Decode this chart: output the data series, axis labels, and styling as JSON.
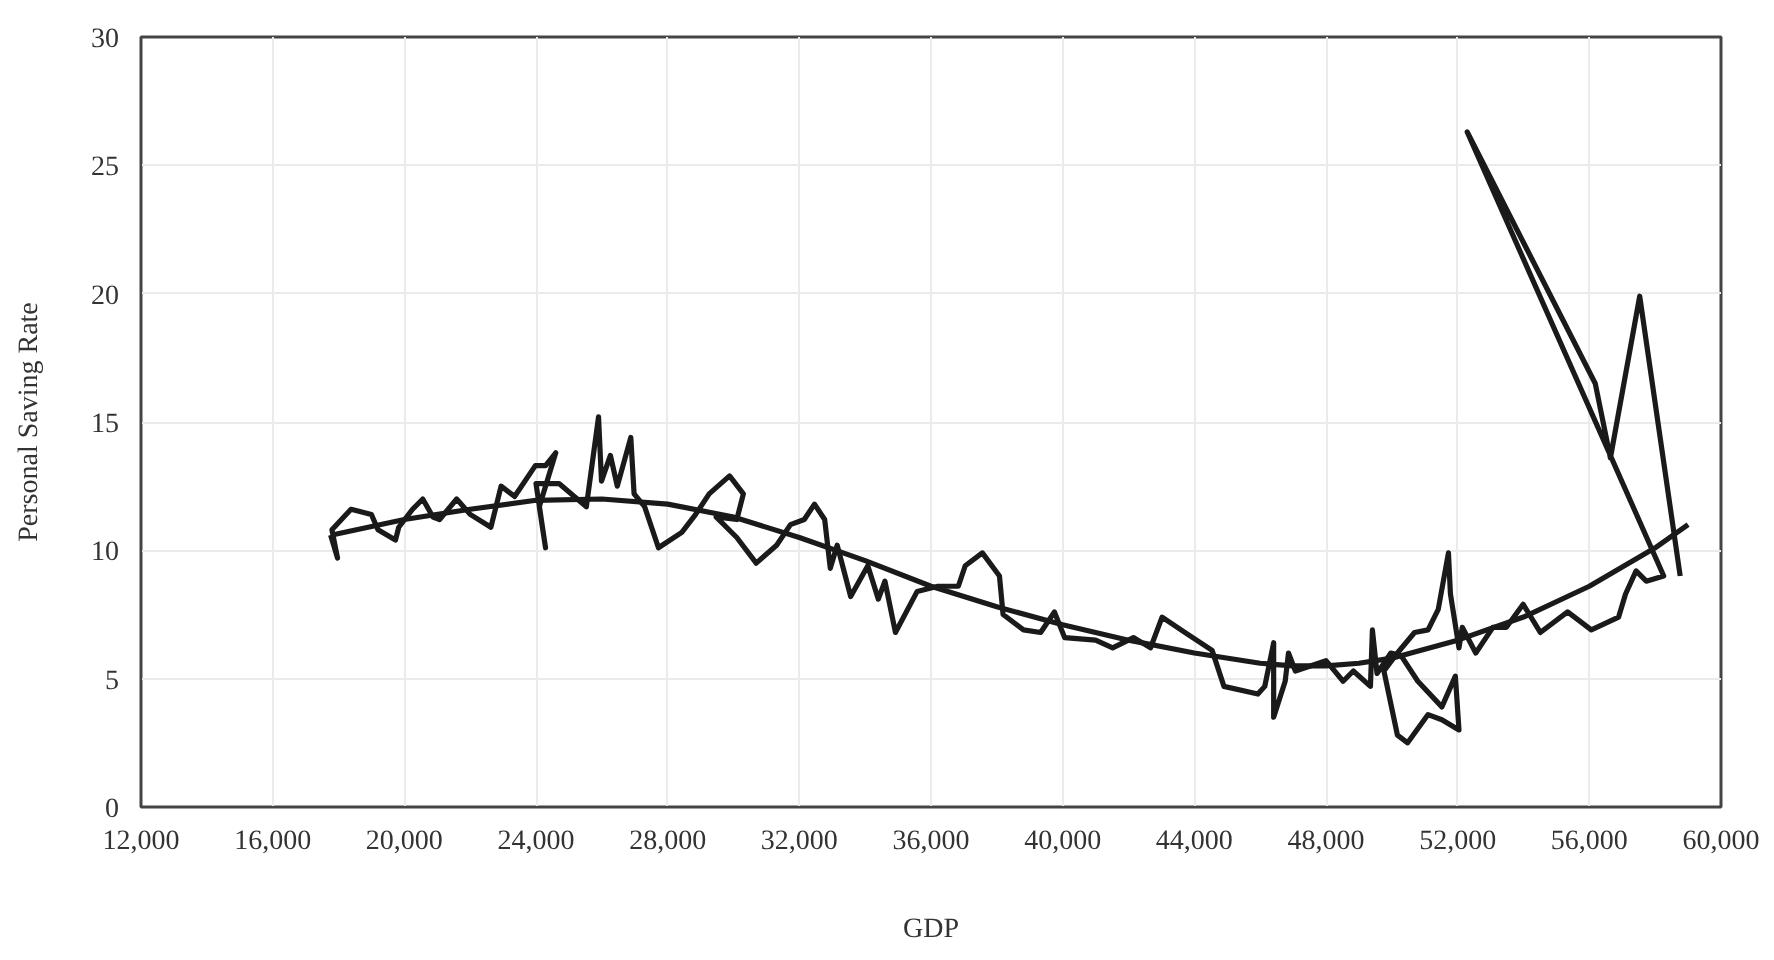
{
  "chart_data": {
    "type": "line",
    "xlabel": "GDP",
    "ylabel": "Personal Saving Rate",
    "xlim": [
      12000,
      60000
    ],
    "ylim": [
      0,
      30
    ],
    "xticks": [
      {
        "value": 12000,
        "label": "12,000"
      },
      {
        "value": 16000,
        "label": "16,000"
      },
      {
        "value": 20000,
        "label": "20,000"
      },
      {
        "value": 24000,
        "label": "24,000"
      },
      {
        "value": 28000,
        "label": "28,000"
      },
      {
        "value": 32000,
        "label": "32,000"
      },
      {
        "value": 36000,
        "label": "36,000"
      },
      {
        "value": 40000,
        "label": "40,000"
      },
      {
        "value": 44000,
        "label": "44,000"
      },
      {
        "value": 48000,
        "label": "48,000"
      },
      {
        "value": 52000,
        "label": "52,000"
      },
      {
        "value": 56000,
        "label": "56,000"
      },
      {
        "value": 60000,
        "label": "60,000"
      }
    ],
    "yticks": [
      0,
      5,
      10,
      15,
      20,
      25,
      30
    ],
    "grid": true,
    "marker": "none",
    "line_style": "solid",
    "series": [
      {
        "color": "#1a1a1a",
        "x": [
          17760,
          17970,
          17800,
          18380,
          19000,
          19200,
          19730,
          19830,
          20250,
          20560,
          20870,
          21070,
          21590,
          22000,
          22630,
          22940,
          23350,
          23980,
          24290,
          24600,
          24100,
          24290,
          24000,
          24700,
          25530,
          25900,
          25990,
          26260,
          26470,
          26880,
          26980,
          27300,
          27720,
          28430,
          28850,
          29260,
          29880,
          30300,
          30100,
          29470,
          30100,
          30690,
          31310,
          31730,
          32150,
          32460,
          32770,
          32940,
          33150,
          33560,
          34080,
          34400,
          34600,
          34920,
          35580,
          36210,
          36830,
          37040,
          37560,
          38080,
          38190,
          38810,
          39330,
          39750,
          40060,
          41000,
          41520,
          42150,
          42670,
          43020,
          43710,
          44540,
          44900,
          45930,
          46140,
          46410,
          46410,
          46760,
          46860,
          47070,
          48000,
          48520,
          48830,
          49350,
          49410,
          49550,
          49970,
          50280,
          50790,
          51520,
          51930,
          52040,
          51520,
          51100,
          50480,
          50170,
          49760,
          50170,
          50690,
          51100,
          51410,
          51720,
          51780,
          52040,
          52140,
          52550,
          53070,
          53480,
          53990,
          54510,
          55340,
          56060,
          56890,
          57100,
          57420,
          57730,
          58260,
          52290,
          56180,
          56640,
          57530,
          58760
        ],
        "values": [
          10.6,
          9.7,
          10.8,
          11.6,
          11.4,
          10.8,
          10.4,
          10.9,
          11.6,
          12.0,
          11.3,
          11.2,
          12.0,
          11.4,
          10.9,
          12.5,
          12.1,
          13.3,
          13.3,
          13.8,
          11.7,
          10.1,
          12.6,
          12.6,
          11.7,
          15.2,
          12.7,
          13.7,
          12.5,
          14.4,
          12.2,
          11.7,
          10.1,
          10.7,
          11.4,
          12.2,
          12.9,
          12.2,
          11.2,
          11.3,
          10.5,
          9.5,
          10.2,
          11.0,
          11.2,
          11.8,
          11.2,
          9.3,
          10.2,
          8.2,
          9.4,
          8.1,
          8.8,
          6.8,
          8.4,
          8.6,
          8.6,
          9.4,
          9.9,
          9.0,
          7.5,
          6.9,
          6.8,
          7.6,
          6.6,
          6.5,
          6.2,
          6.6,
          6.2,
          7.4,
          6.8,
          6.1,
          4.7,
          4.4,
          4.7,
          6.4,
          3.5,
          4.9,
          6.0,
          5.3,
          5.7,
          4.9,
          5.3,
          4.7,
          6.9,
          5.2,
          6.0,
          5.9,
          4.9,
          3.9,
          5.1,
          3.0,
          3.4,
          3.6,
          2.5,
          2.8,
          5.3,
          6.0,
          6.8,
          6.9,
          7.7,
          9.9,
          8.3,
          6.2,
          7.0,
          6.0,
          7.0,
          7.0,
          7.9,
          6.8,
          7.6,
          6.9,
          7.4,
          8.3,
          9.2,
          8.8,
          9.0,
          26.3,
          16.5,
          13.6,
          19.9,
          9.0
        ]
      },
      {
        "color": "#1a1a1a",
        "x": [
          17800,
          20000,
          22000,
          24000,
          26000,
          28000,
          30000,
          32000,
          34000,
          36000,
          38000,
          40000,
          42000,
          44000,
          46000,
          47000,
          48000,
          49000,
          50000,
          52000,
          54000,
          56000,
          58000,
          59000
        ],
        "values": [
          10.6,
          11.2,
          11.6,
          11.95,
          12.0,
          11.8,
          11.3,
          10.5,
          9.6,
          8.6,
          7.8,
          7.1,
          6.5,
          6.0,
          5.6,
          5.5,
          5.5,
          5.6,
          5.8,
          6.5,
          7.4,
          8.6,
          10.1,
          11.0
        ]
      }
    ]
  }
}
